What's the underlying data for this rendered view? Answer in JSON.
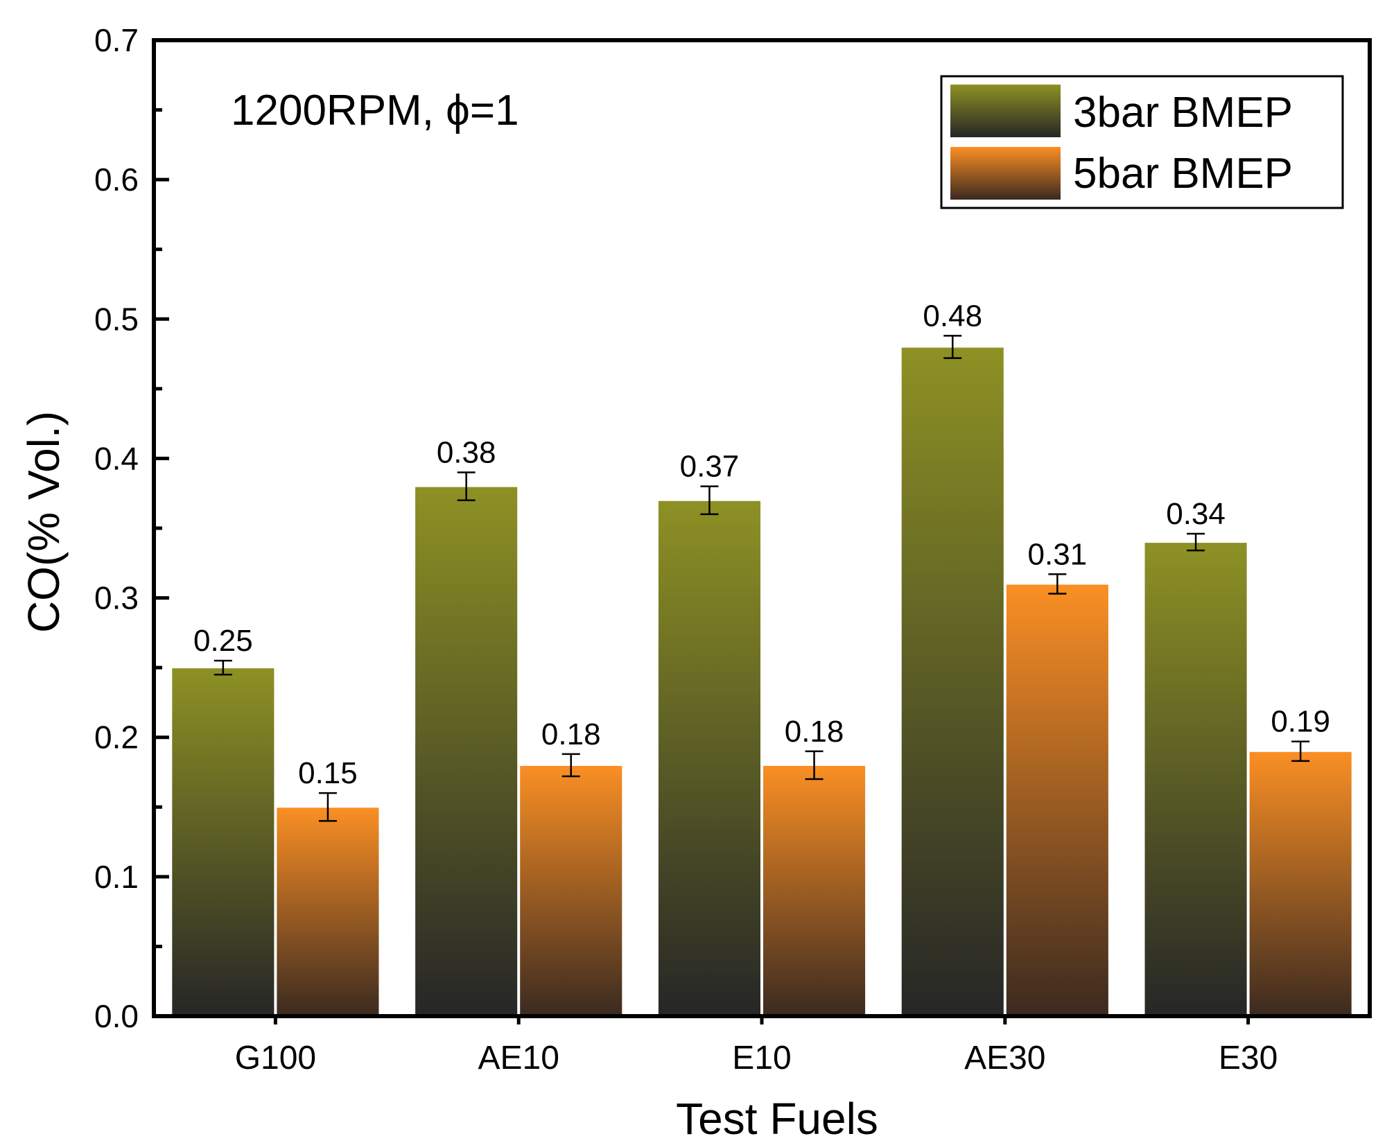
{
  "chart_data": {
    "type": "bar",
    "annotation": "1200RPM, ϕ=1",
    "xlabel": "Test Fuels",
    "ylabel": "CO(% Vol.)",
    "ylim": [
      0,
      0.7
    ],
    "yticks": [
      0.0,
      0.1,
      0.2,
      0.3,
      0.4,
      0.5,
      0.6,
      0.7
    ],
    "ytick_labels": [
      "0.0",
      "0.1",
      "0.2",
      "0.3",
      "0.4",
      "0.5",
      "0.6",
      "0.7"
    ],
    "categories": [
      "G100",
      "AE10",
      "E10",
      "AE30",
      "E30"
    ],
    "series": [
      {
        "name": "3bar BMEP",
        "values": [
          0.25,
          0.38,
          0.37,
          0.48,
          0.34
        ],
        "labels": [
          "0.25",
          "0.38",
          "0.37",
          "0.48",
          "0.34"
        ],
        "errors": [
          0.005,
          0.01,
          0.01,
          0.008,
          0.006
        ],
        "color_top": "#8e9124",
        "color_bottom": "#262626"
      },
      {
        "name": "5bar BMEP",
        "values": [
          0.15,
          0.18,
          0.18,
          0.31,
          0.19
        ],
        "labels": [
          "0.15",
          "0.18",
          "0.18",
          "0.31",
          "0.19"
        ],
        "errors": [
          0.01,
          0.008,
          0.01,
          0.007,
          0.007
        ],
        "color_top": "#fb8f24",
        "color_bottom": "#3b2a20"
      }
    ],
    "legend_position": "top-right",
    "grid": false
  }
}
